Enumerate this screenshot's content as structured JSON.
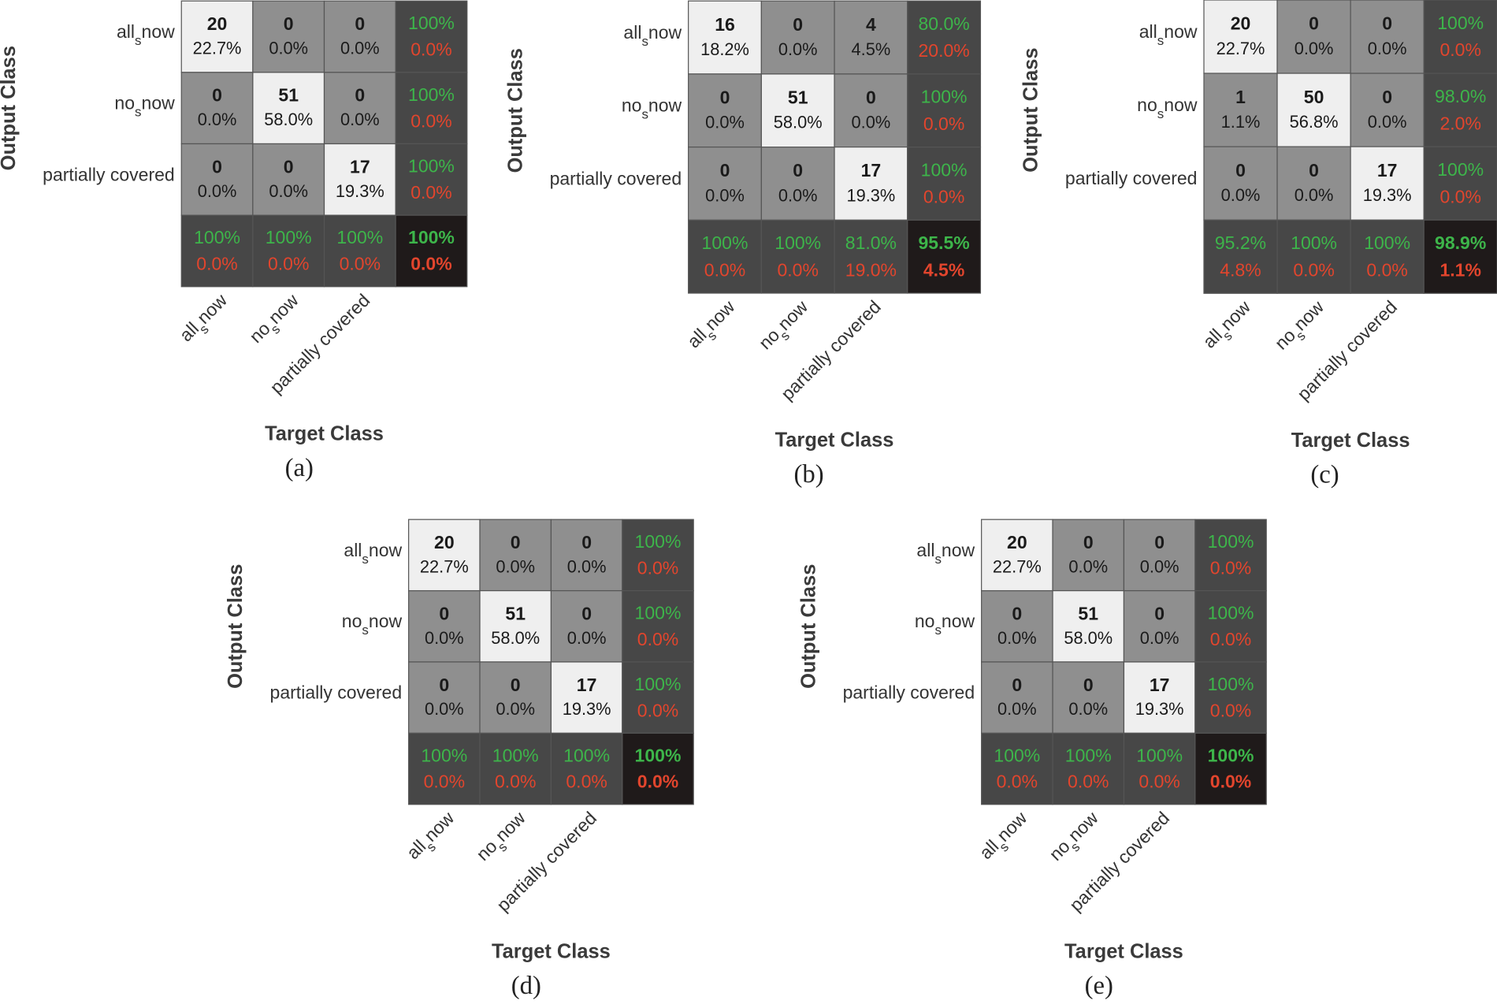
{
  "chart_data": [
    {
      "type": "confusion_matrix",
      "panel_label": "(a)",
      "x_label": "Target Class",
      "y_label": "Output Class",
      "classes": [
        [
          "all",
          "s",
          "now"
        ],
        [
          "no",
          "s",
          "now"
        ],
        [
          "partially covered"
        ]
      ],
      "counts": [
        [
          20,
          0,
          0
        ],
        [
          0,
          51,
          0
        ],
        [
          0,
          0,
          17
        ]
      ],
      "percents": [
        [
          22.7,
          0,
          0
        ],
        [
          0,
          58.0,
          0
        ],
        [
          0,
          0,
          19.3
        ]
      ],
      "percent_labels": [
        [
          "22.7%",
          "0.0%",
          "0.0%"
        ],
        [
          "0.0%",
          "58.0%",
          "0.0%"
        ],
        [
          "0.0%",
          "0.0%",
          "19.3%"
        ]
      ],
      "row_summary": {
        "correct": [
          100,
          100,
          100
        ],
        "correct_labels": [
          "100%",
          "100%",
          "100%"
        ],
        "error": [
          0,
          0,
          0
        ],
        "error_labels": [
          "0.0%",
          "0.0%",
          "0.0%"
        ]
      },
      "col_summary": {
        "correct": [
          100,
          100,
          100
        ],
        "correct_labels": [
          "100%",
          "100%",
          "100%"
        ],
        "error": [
          0,
          0,
          0
        ],
        "error_labels": [
          "0.0%",
          "0.0%",
          "0.0%"
        ]
      },
      "overall": {
        "correct": 100,
        "correct_label": "100%",
        "error": 0,
        "error_label": "0.0%"
      },
      "colors": {
        "diagonal": "#efefef",
        "off_diagonal": "#8f8f8f",
        "summary": "#474747",
        "overall": "#1f1a1a",
        "correct": "#3db54a",
        "error": "#e2452d"
      }
    },
    {
      "type": "confusion_matrix",
      "panel_label": "(b)",
      "x_label": "Target Class",
      "y_label": "Output Class",
      "classes": [
        [
          "all",
          "s",
          "now"
        ],
        [
          "no",
          "s",
          "now"
        ],
        [
          "partially covered"
        ]
      ],
      "counts": [
        [
          16,
          0,
          4
        ],
        [
          0,
          51,
          0
        ],
        [
          0,
          0,
          17
        ]
      ],
      "percents": [
        [
          18.2,
          0,
          4.5
        ],
        [
          0,
          58.0,
          0
        ],
        [
          0,
          0,
          19.3
        ]
      ],
      "percent_labels": [
        [
          "18.2%",
          "0.0%",
          "4.5%"
        ],
        [
          "0.0%",
          "58.0%",
          "0.0%"
        ],
        [
          "0.0%",
          "0.0%",
          "19.3%"
        ]
      ],
      "row_summary": {
        "correct": [
          80.0,
          100,
          100
        ],
        "correct_labels": [
          "80.0%",
          "100%",
          "100%"
        ],
        "error": [
          20.0,
          0,
          0
        ],
        "error_labels": [
          "20.0%",
          "0.0%",
          "0.0%"
        ]
      },
      "col_summary": {
        "correct": [
          100,
          100,
          81.0
        ],
        "correct_labels": [
          "100%",
          "100%",
          "81.0%"
        ],
        "error": [
          0,
          0,
          19.0
        ],
        "error_labels": [
          "0.0%",
          "0.0%",
          "19.0%"
        ]
      },
      "overall": {
        "correct": 95.5,
        "correct_label": "95.5%",
        "error": 4.5,
        "error_label": "4.5%"
      },
      "colors": {
        "diagonal": "#efefef",
        "off_diagonal": "#8f8f8f",
        "summary": "#474747",
        "overall": "#1f1a1a",
        "correct": "#3db54a",
        "error": "#e2452d"
      }
    },
    {
      "type": "confusion_matrix",
      "panel_label": "(c)",
      "x_label": "Target Class",
      "y_label": "Output Class",
      "classes": [
        [
          "all",
          "s",
          "now"
        ],
        [
          "no",
          "s",
          "now"
        ],
        [
          "partially covered"
        ]
      ],
      "counts": [
        [
          20,
          0,
          0
        ],
        [
          1,
          50,
          0
        ],
        [
          0,
          0,
          17
        ]
      ],
      "percents": [
        [
          22.7,
          0,
          0
        ],
        [
          1.1,
          56.8,
          0
        ],
        [
          0,
          0,
          19.3
        ]
      ],
      "percent_labels": [
        [
          "22.7%",
          "0.0%",
          "0.0%"
        ],
        [
          "1.1%",
          "56.8%",
          "0.0%"
        ],
        [
          "0.0%",
          "0.0%",
          "19.3%"
        ]
      ],
      "row_summary": {
        "correct": [
          100,
          98.0,
          100
        ],
        "correct_labels": [
          "100%",
          "98.0%",
          "100%"
        ],
        "error": [
          0,
          2.0,
          0
        ],
        "error_labels": [
          "0.0%",
          "2.0%",
          "0.0%"
        ]
      },
      "col_summary": {
        "correct": [
          95.2,
          100,
          100
        ],
        "correct_labels": [
          "95.2%",
          "100%",
          "100%"
        ],
        "error": [
          4.8,
          0,
          0
        ],
        "error_labels": [
          "4.8%",
          "0.0%",
          "0.0%"
        ]
      },
      "overall": {
        "correct": 98.9,
        "correct_label": "98.9%",
        "error": 1.1,
        "error_label": "1.1%"
      },
      "colors": {
        "diagonal": "#efefef",
        "off_diagonal": "#8f8f8f",
        "summary": "#474747",
        "overall": "#1f1a1a",
        "correct": "#3db54a",
        "error": "#e2452d"
      }
    },
    {
      "type": "confusion_matrix",
      "panel_label": "(d)",
      "x_label": "Target Class",
      "y_label": "Output Class",
      "classes": [
        [
          "all",
          "s",
          "now"
        ],
        [
          "no",
          "s",
          "now"
        ],
        [
          "partially covered"
        ]
      ],
      "counts": [
        [
          20,
          0,
          0
        ],
        [
          0,
          51,
          0
        ],
        [
          0,
          0,
          17
        ]
      ],
      "percents": [
        [
          22.7,
          0,
          0
        ],
        [
          0,
          58.0,
          0
        ],
        [
          0,
          0,
          19.3
        ]
      ],
      "percent_labels": [
        [
          "22.7%",
          "0.0%",
          "0.0%"
        ],
        [
          "0.0%",
          "58.0%",
          "0.0%"
        ],
        [
          "0.0%",
          "0.0%",
          "19.3%"
        ]
      ],
      "row_summary": {
        "correct": [
          100,
          100,
          100
        ],
        "correct_labels": [
          "100%",
          "100%",
          "100%"
        ],
        "error": [
          0,
          0,
          0
        ],
        "error_labels": [
          "0.0%",
          "0.0%",
          "0.0%"
        ]
      },
      "col_summary": {
        "correct": [
          100,
          100,
          100
        ],
        "correct_labels": [
          "100%",
          "100%",
          "100%"
        ],
        "error": [
          0,
          0,
          0
        ],
        "error_labels": [
          "0.0%",
          "0.0%",
          "0.0%"
        ]
      },
      "overall": {
        "correct": 100,
        "correct_label": "100%",
        "error": 0,
        "error_label": "0.0%"
      },
      "colors": {
        "diagonal": "#efefef",
        "off_diagonal": "#8f8f8f",
        "summary": "#474747",
        "overall": "#1f1a1a",
        "correct": "#3db54a",
        "error": "#e2452d"
      }
    },
    {
      "type": "confusion_matrix",
      "panel_label": "(e)",
      "x_label": "Target Class",
      "y_label": "Output Class",
      "classes": [
        [
          "all",
          "s",
          "now"
        ],
        [
          "no",
          "s",
          "now"
        ],
        [
          "partially covered"
        ]
      ],
      "counts": [
        [
          20,
          0,
          0
        ],
        [
          0,
          51,
          0
        ],
        [
          0,
          0,
          17
        ]
      ],
      "percents": [
        [
          22.7,
          0,
          0
        ],
        [
          0,
          58.0,
          0
        ],
        [
          0,
          0,
          19.3
        ]
      ],
      "percent_labels": [
        [
          "22.7%",
          "0.0%",
          "0.0%"
        ],
        [
          "0.0%",
          "58.0%",
          "0.0%"
        ],
        [
          "0.0%",
          "0.0%",
          "19.3%"
        ]
      ],
      "row_summary": {
        "correct": [
          100,
          100,
          100
        ],
        "correct_labels": [
          "100%",
          "100%",
          "100%"
        ],
        "error": [
          0,
          0,
          0
        ],
        "error_labels": [
          "0.0%",
          "0.0%",
          "0.0%"
        ]
      },
      "col_summary": {
        "correct": [
          100,
          100,
          100
        ],
        "correct_labels": [
          "100%",
          "100%",
          "100%"
        ],
        "error": [
          0,
          0,
          0
        ],
        "error_labels": [
          "0.0%",
          "0.0%",
          "0.0%"
        ]
      },
      "overall": {
        "correct": 100,
        "correct_label": "100%",
        "error": 0,
        "error_label": "0.0%"
      },
      "colors": {
        "diagonal": "#efefef",
        "off_diagonal": "#8f8f8f",
        "summary": "#474747",
        "overall": "#1f1a1a",
        "correct": "#3db54a",
        "error": "#e2452d"
      }
    }
  ]
}
